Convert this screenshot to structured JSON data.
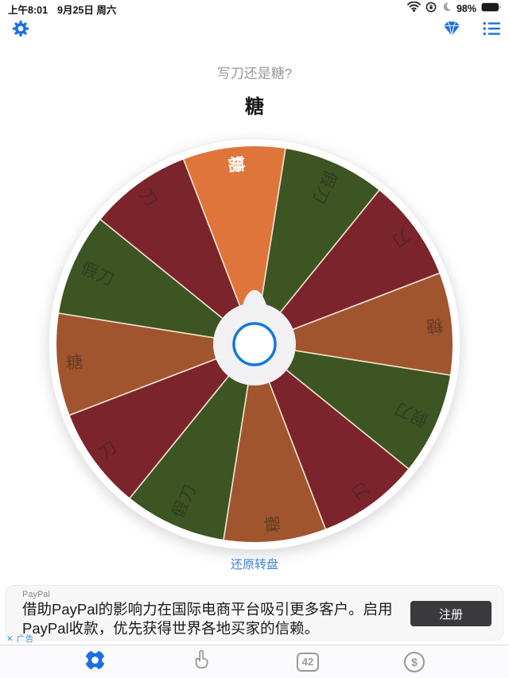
{
  "status_bar": {
    "time": "上午8:01",
    "date": "9月25日 周六",
    "battery_percent": "98%"
  },
  "header": {
    "question": "写刀还是糖?",
    "result": "糖"
  },
  "wheel": {
    "rotation_deg": -6,
    "radius": 250,
    "divider_color": "#EFE3CE",
    "rim_color": "#FFFFFF",
    "hub_color": "#F1F1F4",
    "hub_ring_color": "#1478DE",
    "selected_label_color": "#FFFFFF",
    "label_color": "rgba(40,36,32,0.5)",
    "segments": [
      {
        "label": "糖",
        "color": "#E0753B",
        "selected": true
      },
      {
        "label": "假刀",
        "color": "#3D5423",
        "selected": false
      },
      {
        "label": "刀",
        "color": "#7B242C",
        "selected": false
      },
      {
        "label": "糖",
        "color": "#A0552F",
        "selected": false
      },
      {
        "label": "假刀",
        "color": "#3D5423",
        "selected": false
      },
      {
        "label": "刀",
        "color": "#7B242C",
        "selected": false
      },
      {
        "label": "糖",
        "color": "#A0552F",
        "selected": false
      },
      {
        "label": "假刀",
        "color": "#3D5423",
        "selected": false
      },
      {
        "label": "刀",
        "color": "#7B242C",
        "selected": false
      },
      {
        "label": "糖",
        "color": "#A0552F",
        "selected": false
      },
      {
        "label": "假刀",
        "color": "#3D5423",
        "selected": false
      },
      {
        "label": "刀",
        "color": "#7B242C",
        "selected": false
      }
    ]
  },
  "actions": {
    "reset_label": "还原转盘"
  },
  "ad": {
    "advertiser": "PayPal",
    "line1": "借助PayPal的影响力在国际电商平台吸引更多客户。启用",
    "line2": "PayPal收款，优先获得世界各地买家的信赖。",
    "cta": "注册",
    "close_badge": "✕ 广告"
  },
  "tab_bar": {
    "tabs": [
      {
        "name": "spinner-wheel",
        "selected": true
      },
      {
        "name": "hand-chooser",
        "selected": false
      },
      {
        "name": "number-picker",
        "label": "42",
        "selected": false
      },
      {
        "name": "coin-flip",
        "label": "$",
        "selected": false
      }
    ]
  },
  "colors": {
    "accent_blue": "#1B6FE0",
    "link_blue": "#3B82D9"
  }
}
